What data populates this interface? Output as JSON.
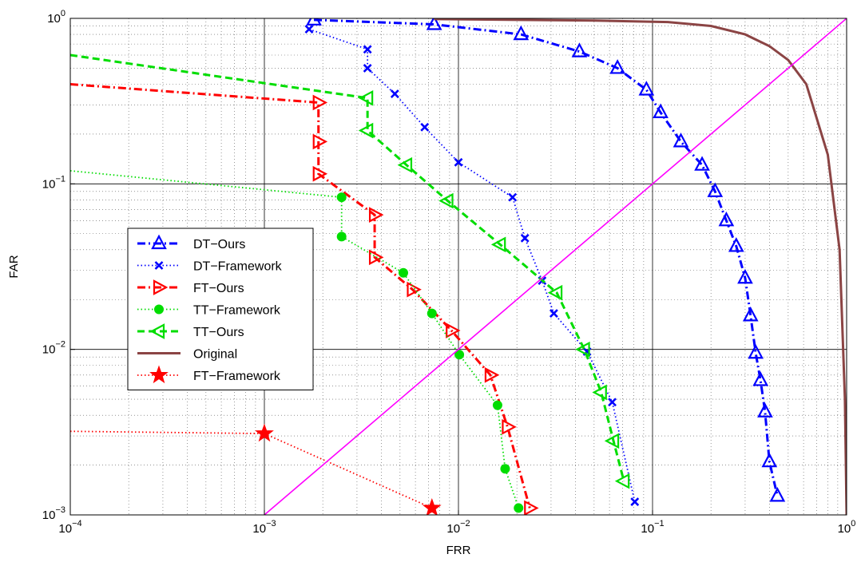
{
  "chart_data": {
    "type": "line",
    "xlabel": "FRR",
    "ylabel": "FAR",
    "x_scale": "log",
    "y_scale": "log",
    "xlim": [
      0.0001,
      1
    ],
    "ylim": [
      0.001,
      1
    ],
    "x_ticks": [
      {
        "base": "10",
        "exp": "−4"
      },
      {
        "base": "10",
        "exp": "−3"
      },
      {
        "base": "10",
        "exp": "−2"
      },
      {
        "base": "10",
        "exp": "−1"
      },
      {
        "base": "10",
        "exp": "0"
      }
    ],
    "y_ticks": [
      {
        "base": "10",
        "exp": "−3"
      },
      {
        "base": "10",
        "exp": "−2"
      },
      {
        "base": "10",
        "exp": "−1"
      },
      {
        "base": "10",
        "exp": "0"
      }
    ],
    "grid": true,
    "legend_position": "center-left",
    "series": [
      {
        "name": "DT−Ours",
        "color": "#0000ff",
        "line_style": "dashdot",
        "marker": "triangle-up",
        "x": [
          0.0018,
          0.0075,
          0.021,
          0.042,
          0.066,
          0.093,
          0.11,
          0.14,
          0.18,
          0.21,
          0.24,
          0.27,
          0.3,
          0.32,
          0.34,
          0.36,
          0.38,
          0.4,
          0.44
        ],
        "y": [
          0.98,
          0.92,
          0.8,
          0.63,
          0.5,
          0.37,
          0.27,
          0.18,
          0.13,
          0.09,
          0.06,
          0.042,
          0.027,
          0.016,
          0.0095,
          0.0065,
          0.0042,
          0.0021,
          0.0013
        ]
      },
      {
        "name": "DT−Framework",
        "color": "#0000ff",
        "line_style": "dotted",
        "marker": "x",
        "x": [
          0.0017,
          0.0034,
          0.0034,
          0.0047,
          0.0067,
          0.01,
          0.019,
          0.022,
          0.027,
          0.031,
          0.046,
          0.062,
          0.081
        ],
        "y": [
          0.86,
          0.65,
          0.5,
          0.35,
          0.22,
          0.135,
          0.083,
          0.047,
          0.026,
          0.0165,
          0.0097,
          0.0048,
          0.0012
        ]
      },
      {
        "name": "FT−Ours",
        "color": "#ff0000",
        "line_style": "dashdot",
        "marker": "triangle-right",
        "x": [
          0.0001,
          0.0019,
          0.0019,
          0.0019,
          0.0037,
          0.0037,
          0.0058,
          0.0092,
          0.0146,
          0.0179,
          0.0233
        ],
        "y": [
          0.4,
          0.31,
          0.18,
          0.115,
          0.065,
          0.036,
          0.023,
          0.013,
          0.007,
          0.0034,
          0.0011
        ]
      },
      {
        "name": "TT−Framework",
        "color": "#00dd00",
        "line_style": "dotted",
        "marker": "circle",
        "x": [
          0.0001,
          0.0025,
          0.0025,
          0.0052,
          0.0073,
          0.0101,
          0.0159,
          0.0174,
          0.0204
        ],
        "y": [
          0.12,
          0.083,
          0.048,
          0.029,
          0.0165,
          0.0093,
          0.0046,
          0.0019,
          0.0011
        ]
      },
      {
        "name": "TT−Ours",
        "color": "#00dd00",
        "line_style": "dashed",
        "marker": "triangle-left",
        "x": [
          0.0001,
          0.0034,
          0.0034,
          0.0054,
          0.0088,
          0.0164,
          0.0321,
          0.0445,
          0.0544,
          0.0629,
          0.0712
        ],
        "y": [
          0.6,
          0.33,
          0.21,
          0.13,
          0.079,
          0.043,
          0.022,
          0.01,
          0.0055,
          0.0028,
          0.0016
        ]
      },
      {
        "name": "Original",
        "color": "#8b4444",
        "line_style": "solid",
        "marker": "none",
        "x": [
          0.0075,
          0.05,
          0.12,
          0.2,
          0.3,
          0.4,
          0.5,
          0.62,
          0.8,
          0.92,
          0.98,
          1.0
        ],
        "y": [
          0.99,
          0.97,
          0.95,
          0.9,
          0.8,
          0.68,
          0.56,
          0.4,
          0.15,
          0.04,
          0.005,
          0.001
        ]
      },
      {
        "name": "FT−Framework",
        "color": "#ff0000",
        "line_style": "dotted",
        "marker": "star",
        "x": [
          0.0001,
          0.001,
          0.0073
        ],
        "y": [
          0.0032,
          0.0031,
          0.0011
        ]
      },
      {
        "name": "",
        "color": "#ff00ff",
        "line_style": "solid",
        "marker": "none",
        "x": [
          0.001,
          1
        ],
        "y": [
          0.001,
          1
        ]
      }
    ]
  }
}
